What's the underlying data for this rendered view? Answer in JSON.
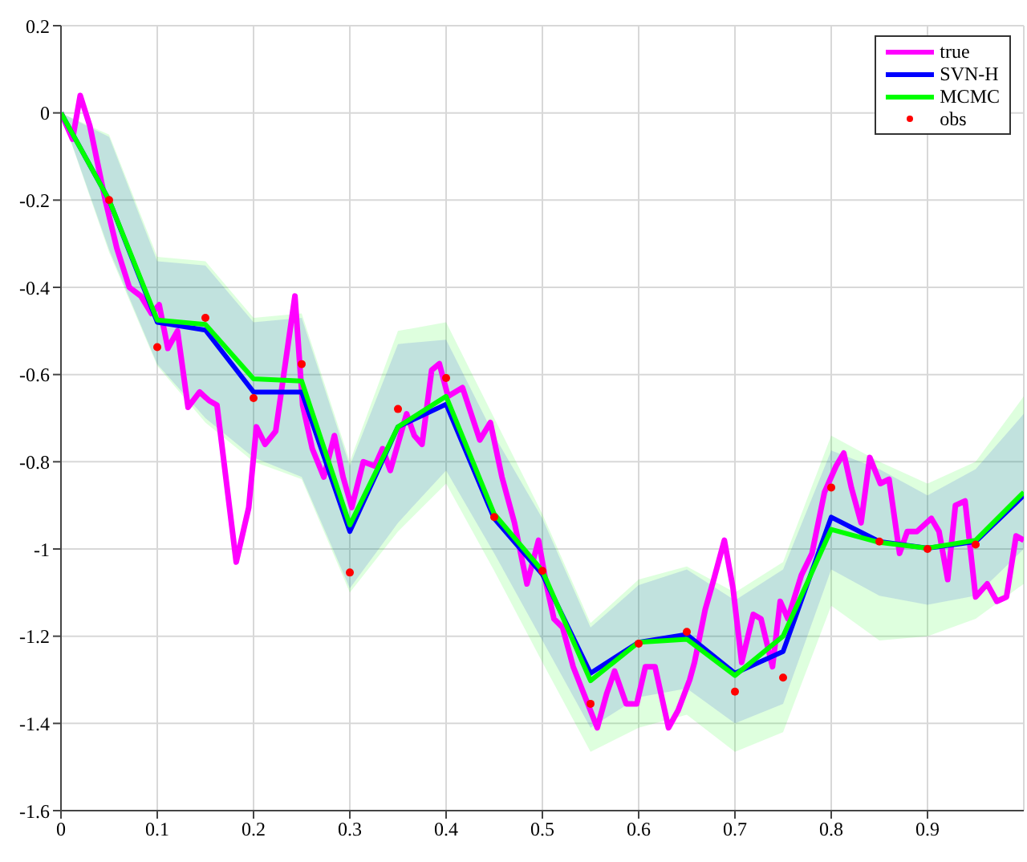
{
  "chart_data": {
    "type": "line",
    "xlim": [
      0,
      1
    ],
    "xticks": [
      0,
      0.1,
      0.2,
      0.3,
      0.4,
      0.5,
      0.6,
      0.7,
      0.8,
      0.9
    ],
    "ylim": [
      -1.6,
      0.2
    ],
    "yticks": [
      -1.6,
      -1.4,
      -1.2,
      -1,
      -0.8,
      -0.6,
      -0.4,
      -0.2,
      0,
      0.2
    ],
    "grid": true,
    "legend": "top right",
    "marker": "none",
    "line_style": "solid",
    "series": [
      {
        "name": "true",
        "color": "#ff00ff",
        "x": [
          0,
          0.012,
          0.02,
          0.03,
          0.046,
          0.058,
          0.071,
          0.083,
          0.094,
          0.102,
          0.111,
          0.121,
          0.132,
          0.144,
          0.154,
          0.162,
          0.182,
          0.195,
          0.203,
          0.212,
          0.223,
          0.243,
          0.251,
          0.261,
          0.273,
          0.284,
          0.293,
          0.302,
          0.314,
          0.326,
          0.334,
          0.342,
          0.359,
          0.367,
          0.375,
          0.385,
          0.393,
          0.402,
          0.417,
          0.435,
          0.446,
          0.458,
          0.471,
          0.484,
          0.496,
          0.504,
          0.512,
          0.521,
          0.532,
          0.557,
          0.567,
          0.575,
          0.587,
          0.598,
          0.607,
          0.617,
          0.631,
          0.641,
          0.653,
          0.658,
          0.669,
          0.678,
          0.689,
          0.698,
          0.707,
          0.719,
          0.727,
          0.739,
          0.747,
          0.755,
          0.769,
          0.78,
          0.793,
          0.805,
          0.813,
          0.821,
          0.831,
          0.84,
          0.851,
          0.86,
          0.871,
          0.879,
          0.889,
          0.904,
          0.912,
          0.921,
          0.929,
          0.939,
          0.95,
          0.962,
          0.972,
          0.982,
          0.992,
          1
        ],
        "values": [
          0,
          -0.06,
          0.04,
          -0.03,
          -0.2,
          -0.31,
          -0.4,
          -0.42,
          -0.46,
          -0.44,
          -0.54,
          -0.5,
          -0.675,
          -0.64,
          -0.66,
          -0.67,
          -1.03,
          -0.905,
          -0.72,
          -0.76,
          -0.73,
          -0.42,
          -0.67,
          -0.77,
          -0.835,
          -0.74,
          -0.835,
          -0.905,
          -0.8,
          -0.81,
          -0.77,
          -0.82,
          -0.69,
          -0.74,
          -0.76,
          -0.59,
          -0.575,
          -0.65,
          -0.63,
          -0.75,
          -0.71,
          -0.835,
          -0.94,
          -1.08,
          -0.98,
          -1.08,
          -1.16,
          -1.18,
          -1.27,
          -1.41,
          -1.33,
          -1.28,
          -1.355,
          -1.355,
          -1.27,
          -1.27,
          -1.41,
          -1.37,
          -1.3,
          -1.26,
          -1.14,
          -1.07,
          -0.98,
          -1.09,
          -1.26,
          -1.15,
          -1.16,
          -1.27,
          -1.12,
          -1.16,
          -1.06,
          -1.01,
          -0.87,
          -0.81,
          -0.78,
          -0.86,
          -0.94,
          -0.79,
          -0.85,
          -0.84,
          -1.01,
          -0.96,
          -0.96,
          -0.93,
          -0.96,
          -1.07,
          -0.9,
          -0.89,
          -1.11,
          -1.08,
          -1.12,
          -1.11,
          -0.97,
          -0.98
        ]
      },
      {
        "name": "SVN-H",
        "color": "#0000ff",
        "x": [
          0,
          0.05,
          0.1,
          0.15,
          0.2,
          0.25,
          0.3,
          0.35,
          0.4,
          0.45,
          0.5,
          0.55,
          0.6,
          0.65,
          0.7,
          0.75,
          0.8,
          0.85,
          0.9,
          0.95,
          1
        ],
        "values": [
          0,
          -0.2,
          -0.48,
          -0.498,
          -0.64,
          -0.64,
          -0.96,
          -0.72,
          -0.668,
          -0.93,
          -1.058,
          -1.285,
          -1.214,
          -1.196,
          -1.285,
          -1.235,
          -0.927,
          -0.983,
          -0.998,
          -0.983,
          -0.877
        ],
        "upper": [
          0,
          -0.055,
          -0.34,
          -0.35,
          -0.48,
          -0.47,
          -0.81,
          -0.53,
          -0.52,
          -0.74,
          -0.93,
          -1.18,
          -1.083,
          -1.047,
          -1.118,
          -1.047,
          -0.774,
          -0.817,
          -0.877,
          -0.817,
          -0.69
        ],
        "lower": [
          0,
          -0.314,
          -0.576,
          -0.7,
          -0.79,
          -0.835,
          -1.09,
          -0.94,
          -0.82,
          -1.01,
          -1.21,
          -1.41,
          -1.34,
          -1.32,
          -1.4,
          -1.355,
          -1.047,
          -1.107,
          -1.128,
          -1.107,
          -1
        ]
      },
      {
        "name": "MCMC",
        "color": "#00ff00",
        "x": [
          0,
          0.05,
          0.1,
          0.15,
          0.2,
          0.25,
          0.3,
          0.35,
          0.4,
          0.45,
          0.5,
          0.55,
          0.6,
          0.65,
          0.7,
          0.75,
          0.8,
          0.85,
          0.9,
          0.95,
          1
        ],
        "values": [
          0,
          -0.2,
          -0.475,
          -0.485,
          -0.61,
          -0.615,
          -0.945,
          -0.72,
          -0.65,
          -0.92,
          -1.05,
          -1.302,
          -1.214,
          -1.207,
          -1.29,
          -1.2,
          -0.955,
          -0.985,
          -0.998,
          -0.98,
          -0.87
        ],
        "upper": [
          0,
          -0.05,
          -0.33,
          -0.34,
          -0.47,
          -0.46,
          -0.8,
          -0.5,
          -0.48,
          -0.7,
          -0.92,
          -1.17,
          -1.07,
          -1.04,
          -1.1,
          -1.03,
          -0.74,
          -0.8,
          -0.85,
          -0.8,
          -0.65
        ],
        "lower": [
          0,
          -0.32,
          -0.58,
          -0.71,
          -0.8,
          -0.84,
          -1.1,
          -0.96,
          -0.85,
          -1.05,
          -1.26,
          -1.465,
          -1.41,
          -1.38,
          -1.465,
          -1.42,
          -1.13,
          -1.21,
          -1.2,
          -1.16,
          -1.08
        ]
      },
      {
        "name": "obs",
        "color": "#ff0000",
        "type": "scatter",
        "marker": "circle",
        "x": [
          0.05,
          0.1,
          0.15,
          0.2,
          0.25,
          0.3,
          0.35,
          0.4,
          0.45,
          0.5,
          0.55,
          0.6,
          0.65,
          0.7,
          0.75,
          0.8,
          0.85,
          0.9,
          0.95
        ],
        "values": [
          -0.2,
          -0.537,
          -0.47,
          -0.654,
          -0.576,
          -1.054,
          -0.679,
          -0.608,
          -0.927,
          -1.05,
          -1.355,
          -1.217,
          -1.19,
          -1.327,
          -1.295,
          -0.859,
          -0.983,
          -1,
          -0.99
        ]
      }
    ]
  }
}
